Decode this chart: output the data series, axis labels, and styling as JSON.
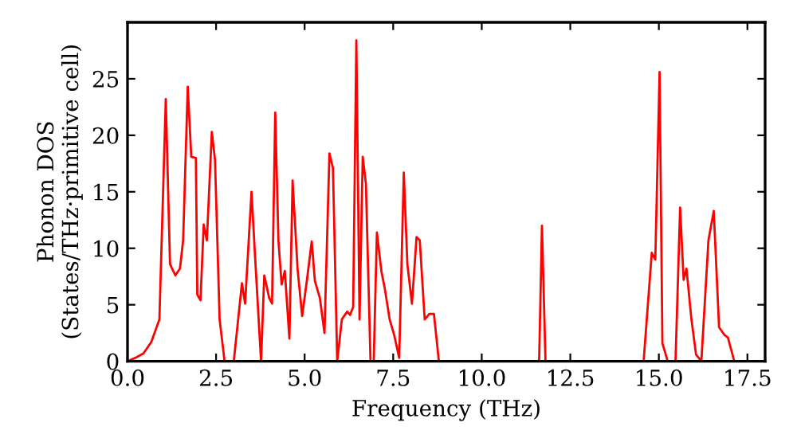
{
  "chart_data": {
    "type": "line",
    "xlabel": "Frequency (THz)",
    "ylabel": "Phonon DOS\n(States/THz·primitive cell)",
    "xlim": [
      0,
      18
    ],
    "ylim": [
      0,
      30
    ],
    "xticks": [
      {
        "value": 0,
        "label": "0.0"
      },
      {
        "value": 2.5,
        "label": "2.5"
      },
      {
        "value": 5,
        "label": "5.0"
      },
      {
        "value": 7.5,
        "label": "7.5"
      },
      {
        "value": 10,
        "label": "10.0"
      },
      {
        "value": 12.5,
        "label": "12.5"
      },
      {
        "value": 15,
        "label": "15.0"
      },
      {
        "value": 17.5,
        "label": "17.5"
      }
    ],
    "yticks": [
      0,
      5,
      10,
      15,
      20,
      25
    ],
    "grid": false,
    "marker": "none",
    "line_style": "solid",
    "series": [
      {
        "color": "#ff0000",
        "x": [
          0,
          0.22,
          0.45,
          0.67,
          0.9,
          1.08,
          1.2,
          1.35,
          1.48,
          1.57,
          1.7,
          1.8,
          1.93,
          1.97,
          2.06,
          2.15,
          2.24,
          2.38,
          2.47,
          2.6,
          2.74,
          3.0,
          3.23,
          3.32,
          3.5,
          3.6,
          3.77,
          3.86,
          4.0,
          4.08,
          4.17,
          4.26,
          4.35,
          4.44,
          4.57,
          4.66,
          4.8,
          4.93,
          5.07,
          5.2,
          5.29,
          5.43,
          5.56,
          5.7,
          5.8,
          5.92,
          6.05,
          6.2,
          6.28,
          6.37,
          6.46,
          6.55,
          6.64,
          6.73,
          6.86,
          6.95,
          7.04,
          7.17,
          7.26,
          7.4,
          7.53,
          7.67,
          7.8,
          7.9,
          8.03,
          8.16,
          8.25,
          8.39,
          8.52,
          8.65,
          8.79,
          11.62,
          11.7,
          11.8,
          14.57,
          14.8,
          14.9,
          15.02,
          15.1,
          15.25,
          15.47,
          15.6,
          15.7,
          15.78,
          15.92,
          16.05,
          16.2,
          16.4,
          16.55,
          16.7,
          16.86,
          16.95,
          17.13,
          17.94
        ],
        "values": [
          0,
          0.3,
          0.7,
          1.7,
          3.7,
          23.2,
          8.6,
          7.6,
          8.2,
          10.7,
          24.3,
          18.1,
          18,
          5.9,
          5.4,
          12.1,
          10.7,
          20.3,
          17.8,
          3.7,
          0,
          0,
          6.9,
          5.1,
          15,
          9.3,
          0,
          7.6,
          5.6,
          5.1,
          22,
          10.7,
          6.8,
          8,
          2,
          16,
          8.2,
          4,
          7.3,
          10.6,
          7.1,
          5.6,
          2.5,
          18.4,
          17.1,
          0,
          3.7,
          4.4,
          4.1,
          4.8,
          28.4,
          3.7,
          18.1,
          15.7,
          0,
          0,
          11.4,
          7.9,
          6.5,
          3.7,
          2.3,
          0.3,
          16.7,
          8.6,
          5.1,
          11,
          10.7,
          3.7,
          4.2,
          4.2,
          0,
          0,
          12,
          0,
          0,
          9.6,
          9,
          25.6,
          1.6,
          0,
          0,
          13.6,
          7.2,
          8.2,
          3.7,
          0.6,
          0,
          10.7,
          13.3,
          3,
          2.3,
          2.1,
          0,
          0
        ]
      }
    ]
  }
}
